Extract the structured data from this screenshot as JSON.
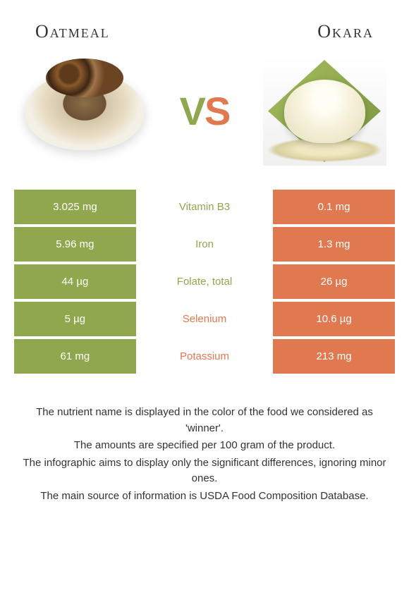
{
  "header": {
    "left_title": "Oatmeal",
    "right_title": "Okara"
  },
  "vs": {
    "v": "V",
    "s": "S"
  },
  "colors": {
    "green": "#8fa84d",
    "orange": "#e07850",
    "white": "#ffffff"
  },
  "table": {
    "rows": [
      {
        "left": "3.025 mg",
        "mid": "Vitamin B3",
        "right": "0.1 mg",
        "winner": "left"
      },
      {
        "left": "5.96 mg",
        "mid": "Iron",
        "right": "1.3 mg",
        "winner": "left"
      },
      {
        "left": "44 µg",
        "mid": "Folate, total",
        "right": "26 µg",
        "winner": "left"
      },
      {
        "left": "5 µg",
        "mid": "Selenium",
        "right": "10.6 µg",
        "winner": "right"
      },
      {
        "left": "61 mg",
        "mid": "Potassium",
        "right": "213 mg",
        "winner": "right"
      }
    ]
  },
  "footnotes": {
    "line1": "The nutrient name is displayed in the color of the food we considered as 'winner'.",
    "line2": "The amounts are specified per 100 gram of the product.",
    "line3": "The infographic aims to display only the significant differences, ignoring minor ones.",
    "line4": "The main source of information is USDA Food Composition Database."
  }
}
